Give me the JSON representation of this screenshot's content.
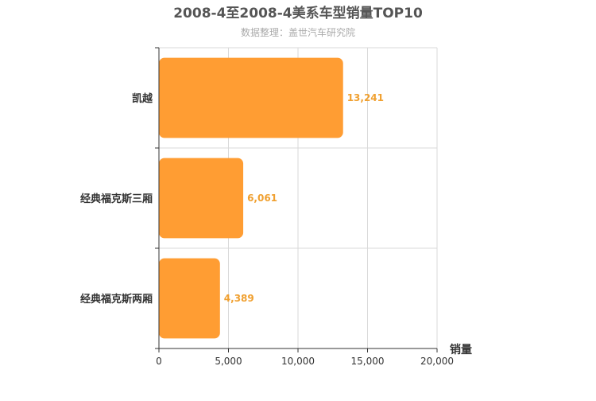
{
  "chart_data": {
    "type": "bar",
    "orientation": "horizontal",
    "title": "2008-4至2008-4美系车型销量TOP10",
    "subtitle": "数据整理：盖世汽车研究院",
    "xlabel": "销量",
    "ylabel": "",
    "categories": [
      "凯越",
      "经典福克斯三厢",
      "经典福克斯两厢"
    ],
    "values": [
      13241,
      6061,
      4389
    ],
    "value_labels": [
      "13,241",
      "6,061",
      "4,389"
    ],
    "xlim": [
      0,
      20000
    ],
    "xticks": [
      0,
      5000,
      10000,
      15000,
      20000
    ],
    "xtick_labels": [
      "0",
      "5,000",
      "10,000",
      "15,000",
      "20,000"
    ],
    "grid": true,
    "bar_color": "#ff9d33",
    "label_color": "#f0a030"
  }
}
